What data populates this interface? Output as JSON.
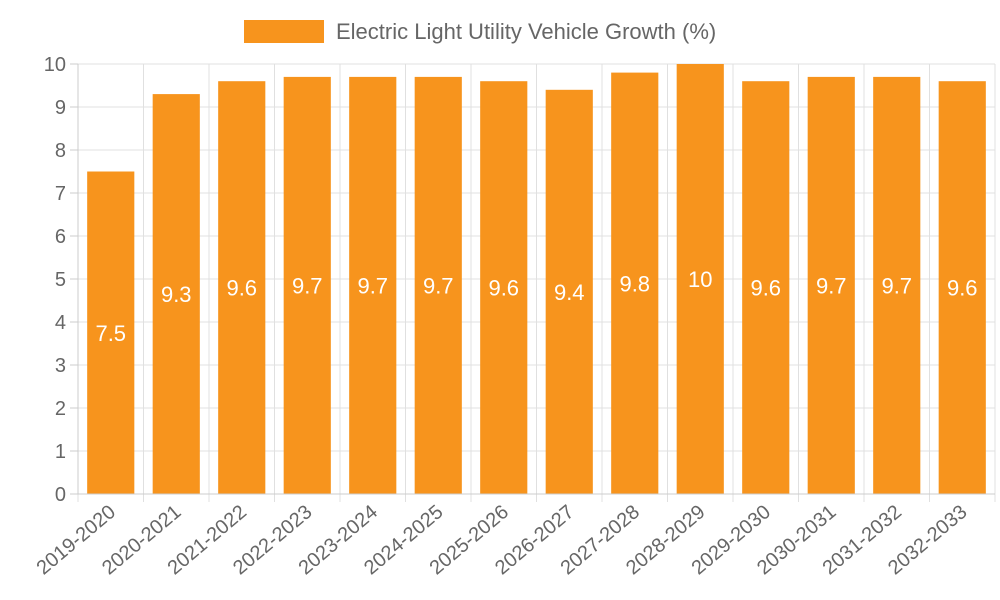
{
  "chart_data": {
    "type": "bar",
    "title": "",
    "xlabel": "",
    "ylabel": "",
    "legend": {
      "position": "top",
      "label": "Electric Light Utility Vehicle Growth (%)"
    },
    "categories": [
      "2019-2020",
      "2020-2021",
      "2021-2022",
      "2022-2023",
      "2023-2024",
      "2024-2025",
      "2025-2026",
      "2026-2027",
      "2027-2028",
      "2028-2029",
      "2029-2030",
      "2030-2031",
      "2031-2032",
      "2032-2033"
    ],
    "series": [
      {
        "name": "Electric Light Utility Vehicle Growth (%)",
        "values": [
          7.5,
          9.3,
          9.6,
          9.7,
          9.7,
          9.7,
          9.6,
          9.4,
          9.8,
          10,
          9.6,
          9.7,
          9.7,
          9.6
        ]
      }
    ],
    "ylim": [
      0,
      10
    ],
    "yticks": [
      0,
      1,
      2,
      3,
      4,
      5,
      6,
      7,
      8,
      9,
      10
    ],
    "grid": true,
    "colors": {
      "bar": "#f7941d",
      "grid": "#e0e0e0",
      "axis": "#cccccc",
      "label": "#ffffff",
      "tick": "#666666"
    }
  }
}
